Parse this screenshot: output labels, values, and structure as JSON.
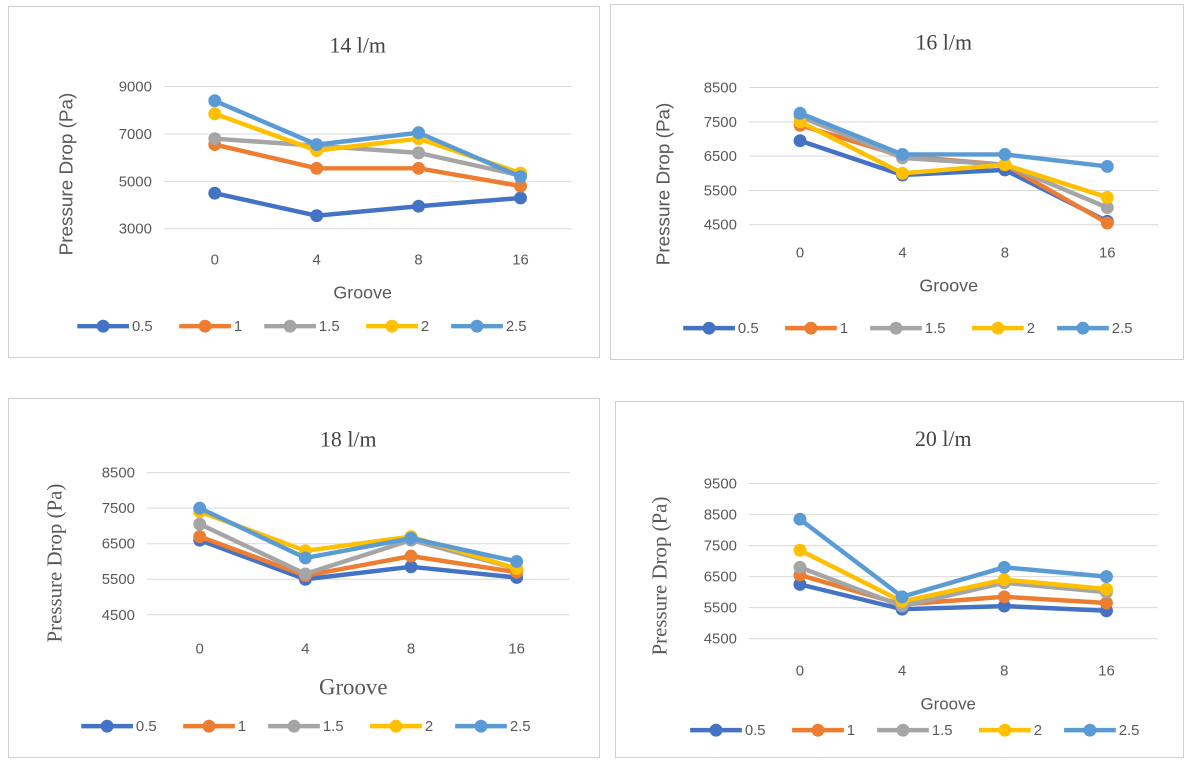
{
  "chart_data": [
    {
      "type": "line",
      "title": "14 l/m",
      "xlabel": "Groove",
      "ylabel": "Pressure Drop (Pa)",
      "categories": [
        "0",
        "4",
        "8",
        "16"
      ],
      "yticks": [
        "9000",
        "7000",
        "5000",
        "3000"
      ],
      "ylim": [
        3000,
        9000
      ],
      "grid": true,
      "legend": "bottom",
      "series": [
        {
          "name": "0.5",
          "color": "#4472C4",
          "values": [
            4500,
            3550,
            3950,
            4300
          ]
        },
        {
          "name": "1",
          "color": "#ED7D31",
          "values": [
            6550,
            5550,
            5550,
            4800
          ]
        },
        {
          "name": "1.5",
          "color": "#A5A5A5",
          "values": [
            6800,
            6500,
            6200,
            5250
          ]
        },
        {
          "name": "2",
          "color": "#FFC000",
          "values": [
            7850,
            6300,
            6800,
            5350
          ]
        },
        {
          "name": "2.5",
          "color": "#5B9BD5",
          "values": [
            8400,
            6550,
            7050,
            5200
          ]
        }
      ]
    },
    {
      "type": "line",
      "title": "16 l/m",
      "xlabel": "Groove",
      "ylabel": "Pressure Drop (Pa)",
      "categories": [
        "0",
        "4",
        "8",
        "16"
      ],
      "yticks": [
        "8500",
        "7500",
        "6500",
        "5500",
        "4500"
      ],
      "ylim": [
        4500,
        8500
      ],
      "grid": true,
      "legend": "bottom",
      "series": [
        {
          "name": "0.5",
          "color": "#4472C4",
          "values": [
            6950,
            5950,
            6100,
            4600
          ]
        },
        {
          "name": "1",
          "color": "#ED7D31",
          "values": [
            7400,
            6500,
            6250,
            4550
          ]
        },
        {
          "name": "1.5",
          "color": "#A5A5A5",
          "values": [
            7650,
            6450,
            6250,
            5000
          ]
        },
        {
          "name": "2",
          "color": "#FFC000",
          "values": [
            7500,
            6000,
            6250,
            5300
          ]
        },
        {
          "name": "2.5",
          "color": "#5B9BD5",
          "values": [
            7750,
            6550,
            6550,
            6200
          ]
        }
      ]
    },
    {
      "type": "line",
      "title": "18 l/m",
      "xlabel": "Groove",
      "ylabel": "Pressure Drop (Pa)",
      "categories": [
        "0",
        "4",
        "8",
        "16"
      ],
      "yticks": [
        "8500",
        "7500",
        "6500",
        "5500",
        "4500"
      ],
      "ylim": [
        4500,
        8500
      ],
      "grid": true,
      "legend": "bottom",
      "series": [
        {
          "name": "0.5",
          "color": "#4472C4",
          "values": [
            6600,
            5500,
            5850,
            5550
          ]
        },
        {
          "name": "1",
          "color": "#ED7D31",
          "values": [
            6700,
            5600,
            6150,
            5700
          ]
        },
        {
          "name": "1.5",
          "color": "#A5A5A5",
          "values": [
            7050,
            5650,
            6600,
            5800
          ]
        },
        {
          "name": "2",
          "color": "#FFC000",
          "values": [
            7400,
            6300,
            6700,
            5800
          ]
        },
        {
          "name": "2.5",
          "color": "#5B9BD5",
          "values": [
            7500,
            6100,
            6650,
            6000
          ]
        }
      ]
    },
    {
      "type": "line",
      "title": "20 l/m",
      "xlabel": "Groove",
      "ylabel": "Pressure Drop (Pa)",
      "categories": [
        "0",
        "4",
        "8",
        "16"
      ],
      "yticks": [
        "9500",
        "8500",
        "7500",
        "6500",
        "5500",
        "4500"
      ],
      "ylim": [
        4500,
        9500
      ],
      "grid": true,
      "legend": "bottom",
      "series": [
        {
          "name": "0.5",
          "color": "#4472C4",
          "values": [
            6250,
            5450,
            5550,
            5400
          ]
        },
        {
          "name": "1",
          "color": "#ED7D31",
          "values": [
            6550,
            5600,
            5850,
            5650
          ]
        },
        {
          "name": "1.5",
          "color": "#A5A5A5",
          "values": [
            6800,
            5550,
            6300,
            6000
          ]
        },
        {
          "name": "2",
          "color": "#FFC000",
          "values": [
            7350,
            5700,
            6400,
            6100
          ]
        },
        {
          "name": "2.5",
          "color": "#5B9BD5",
          "values": [
            8350,
            5850,
            6800,
            6500
          ]
        }
      ]
    }
  ]
}
